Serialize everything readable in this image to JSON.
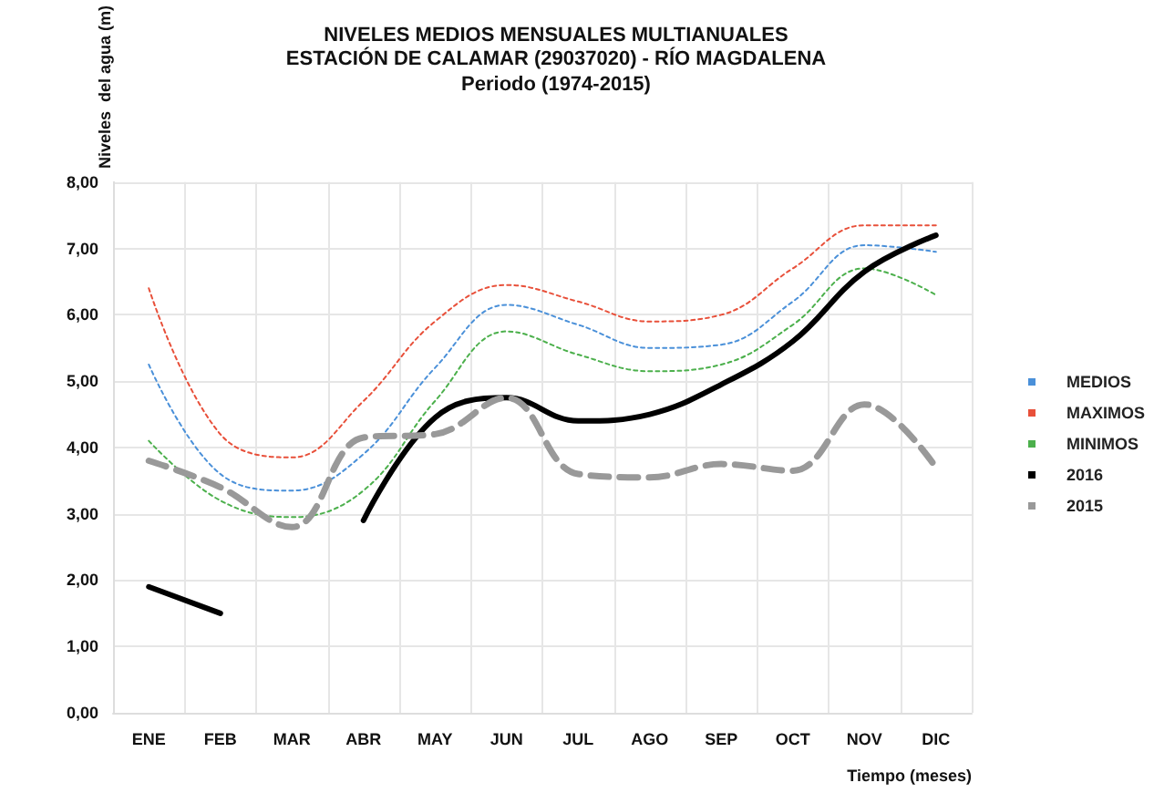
{
  "chart_data": {
    "type": "line",
    "title": "NIVELES MEDIOS MENSUALES MULTIANUALES\nESTACIÓN DE CALAMAR (29037020) - RÍO MAGDALENA",
    "subtitle": "Periodo (1974-2015)",
    "xlabel": "Tiempo (meses)",
    "ylabel": "Niveles  del agua (m)",
    "categories": [
      "ENE",
      "FEB",
      "MAR",
      "ABR",
      "MAY",
      "JUN",
      "JUL",
      "AGO",
      "SEP",
      "OCT",
      "NOV",
      "DIC"
    ],
    "ylim": [
      0,
      8
    ],
    "yticks": [
      {
        "value": 0,
        "label": "0,00"
      },
      {
        "value": 1,
        "label": "1,00"
      },
      {
        "value": 2,
        "label": "2,00"
      },
      {
        "value": 3,
        "label": "3,00"
      },
      {
        "value": 4,
        "label": "4,00"
      },
      {
        "value": 5,
        "label": "5,00"
      },
      {
        "value": 6,
        "label": "6,00"
      },
      {
        "value": 7,
        "label": "7,00"
      },
      {
        "value": 8,
        "label": "8,00"
      }
    ],
    "grid": true,
    "legend": "right",
    "marker": "none",
    "series": [
      {
        "name": "MEDIOS",
        "color": "#4a90d9",
        "line_style": "dotted",
        "values": [
          5.25,
          3.6,
          3.35,
          3.9,
          5.2,
          6.15,
          5.85,
          5.5,
          5.55,
          6.2,
          7.05,
          6.95
        ]
      },
      {
        "name": "MAXIMOS",
        "color": "#e8503a",
        "line_style": "dotted",
        "values": [
          6.4,
          4.2,
          3.85,
          4.7,
          5.9,
          6.45,
          6.2,
          5.9,
          6.0,
          6.7,
          7.35,
          7.35
        ]
      },
      {
        "name": "MINIMOS",
        "color": "#4cb04c",
        "line_style": "dotted",
        "values": [
          4.1,
          3.2,
          2.95,
          3.35,
          4.7,
          5.75,
          5.4,
          5.15,
          5.25,
          5.85,
          6.7,
          6.3
        ]
      },
      {
        "name": "2016",
        "color": "#000000",
        "line_style": "solid",
        "values": [
          1.9,
          1.5,
          null,
          2.9,
          4.45,
          4.75,
          4.4,
          4.5,
          4.95,
          5.6,
          6.65,
          7.2
        ]
      },
      {
        "name": "2015",
        "color": "#999999",
        "line_style": "dashed",
        "values": [
          3.8,
          3.4,
          2.8,
          4.15,
          4.2,
          4.75,
          3.6,
          3.55,
          3.75,
          3.65,
          4.65,
          3.7
        ]
      }
    ]
  }
}
